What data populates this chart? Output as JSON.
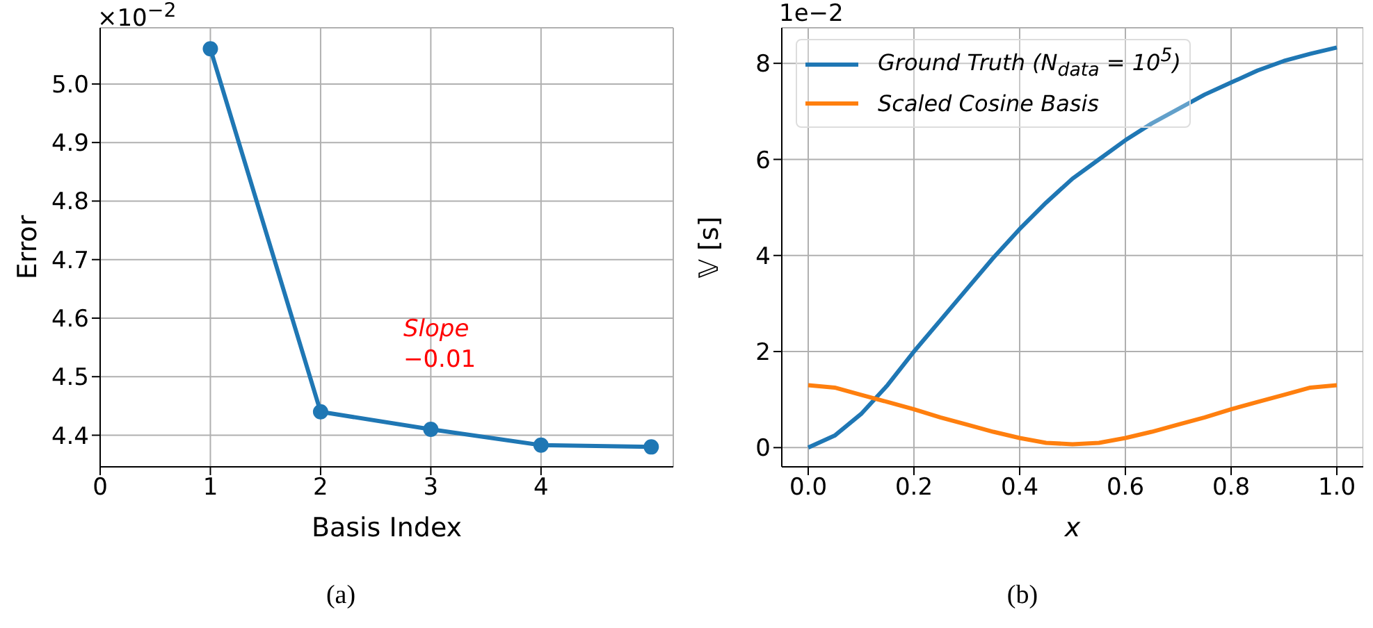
{
  "chart_data": [
    {
      "type": "line",
      "xlabel": "Basis Index",
      "ylabel": "Error",
      "x": [
        1,
        2,
        3,
        4,
        5
      ],
      "series": [
        {
          "color": "#1f77b4",
          "values": [
            5.06,
            4.44,
            4.41,
            4.383,
            4.38
          ]
        }
      ],
      "xlim": [
        0,
        5.2
      ],
      "xticks": [
        0,
        1,
        2,
        3,
        4
      ],
      "ylim": [
        4.346,
        5.096
      ],
      "yticks": [
        4.4,
        4.5,
        4.6,
        4.7,
        4.8,
        4.9,
        {
          "value": 5,
          "label": "5.0"
        }
      ],
      "grid": true,
      "marker": "circle",
      "legend": false,
      "annotations": [
        "×10$^{−2}$",
        "(a)",
        "Slope −0.01"
      ]
    },
    {
      "type": "line",
      "xlabel": "x",
      "ylabel": "𝕍 [s]",
      "x": [
        0,
        0.05,
        0.1,
        0.15,
        0.2,
        0.25,
        0.3,
        0.35,
        0.4,
        0.45,
        0.5,
        0.55,
        0.6,
        0.65,
        0.7,
        0.75,
        0.8,
        0.85,
        0.9,
        0.95,
        1.0
      ],
      "series": [
        {
          "name": "Ground Truth (N$_{data}$ = 10$^{5}$)",
          "color": "#1f77b4",
          "values": [
            0,
            0.25,
            0.7,
            1.3,
            2.0,
            2.65,
            3.3,
            3.95,
            4.55,
            5.1,
            5.6,
            6.0,
            6.4,
            6.75,
            7.05,
            7.35,
            7.6,
            7.85,
            8.05,
            8.2,
            8.33
          ]
        },
        {
          "name": "Scaled Cosine Basis",
          "color": "#ff7f0e",
          "values": [
            1.3,
            1.25,
            1.1,
            0.95,
            0.8,
            0.63,
            0.48,
            0.33,
            0.2,
            0.1,
            0.07,
            0.1,
            0.2,
            0.33,
            0.48,
            0.63,
            0.8,
            0.95,
            1.1,
            1.25,
            1.3
          ]
        }
      ],
      "xlim": [
        -0.05,
        1.05
      ],
      "xticks": [
        {
          "value": 0,
          "label": "0.0"
        },
        0.2,
        0.4,
        0.6,
        0.8,
        {
          "value": 1,
          "label": "1.0"
        }
      ],
      "ylim": [
        -0.4,
        8.74
      ],
      "yticks": [
        0,
        2,
        4,
        6,
        8
      ],
      "grid": true,
      "legend": "top left",
      "annotations": [
        "1e−2",
        "(b)"
      ]
    }
  ]
}
